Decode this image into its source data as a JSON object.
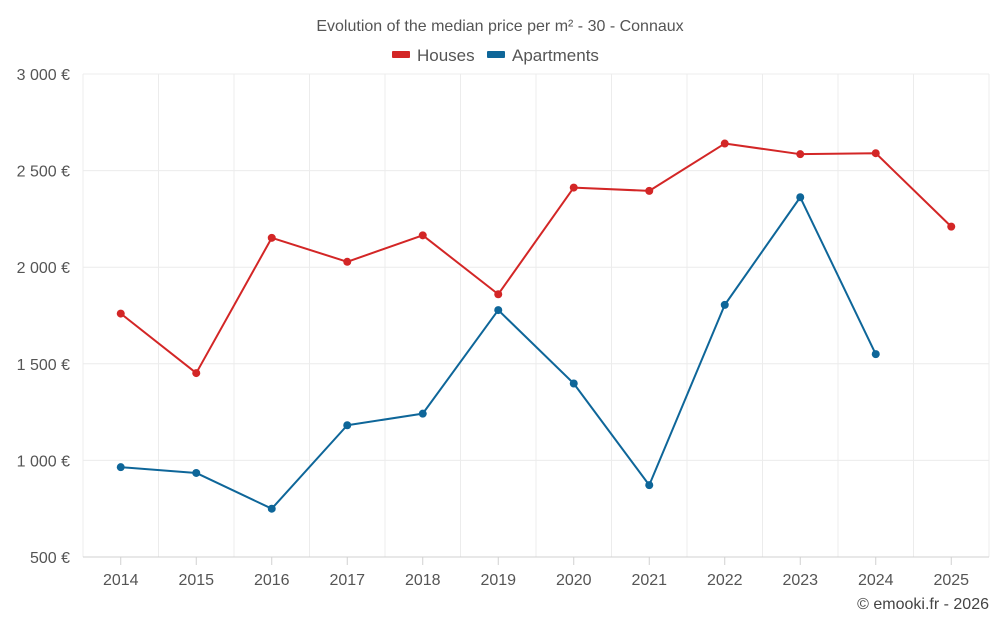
{
  "chart_data": {
    "type": "line",
    "title": "Evolution of the median price per m² - 30 - Connaux",
    "categories": [
      "2014",
      "2015",
      "2016",
      "2017",
      "2018",
      "2019",
      "2020",
      "2021",
      "2022",
      "2023",
      "2024",
      "2025"
    ],
    "series": [
      {
        "name": "Houses",
        "color": "#d32626",
        "values": [
          1760,
          1452,
          2152,
          2028,
          2165,
          1860,
          2412,
          2395,
          2640,
          2585,
          2590,
          2210
        ]
      },
      {
        "name": "Apartments",
        "color": "#0e6699",
        "values": [
          965,
          935,
          750,
          1182,
          1242,
          1778,
          1398,
          872,
          1805,
          2362,
          1550,
          null
        ]
      }
    ],
    "ylim": [
      500,
      3000
    ],
    "yticks": [
      500,
      1000,
      1500,
      2000,
      2500,
      3000
    ],
    "ytick_labels": [
      "500 €",
      "1 000 €",
      "1 500 €",
      "2 000 €",
      "2 500 €",
      "3 000 €"
    ],
    "xlabel": "",
    "ylabel": "",
    "grid": true,
    "legend_position": "top-center",
    "credit": "© emooki.fr - 2026"
  }
}
